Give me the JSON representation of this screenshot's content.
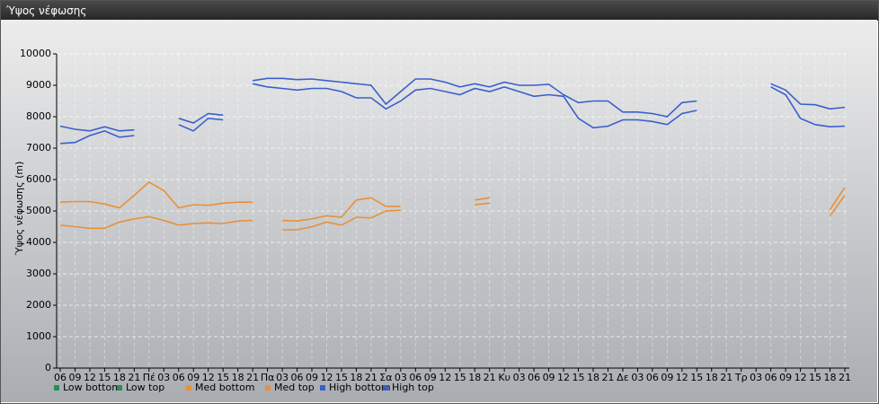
{
  "chart_data": {
    "type": "line",
    "title": "Ύψος νέφωσης",
    "y_label": "Ύψος νέφωσης (m)",
    "categories": [
      "06",
      "09",
      "12",
      "15",
      "18",
      "21",
      "Πέ",
      "03",
      "06",
      "09",
      "12",
      "15",
      "18",
      "21",
      "Πα",
      "03",
      "06",
      "09",
      "12",
      "15",
      "18",
      "21",
      "Σα",
      "03",
      "06",
      "09",
      "12",
      "15",
      "18",
      "21",
      "Κυ",
      "03",
      "06",
      "09",
      "12",
      "15",
      "18",
      "21",
      "Δε",
      "03",
      "06",
      "09",
      "12",
      "15",
      "18",
      "21",
      "Τρ",
      "03",
      "06",
      "09",
      "12",
      "15",
      "18",
      "21"
    ],
    "ylim": [
      0,
      10000
    ],
    "yticks": [
      0,
      1000,
      2000,
      3000,
      4000,
      5000,
      6000,
      7000,
      8000,
      9000,
      10000
    ],
    "grid": true,
    "series": [
      {
        "name": "Low bottom",
        "color": "#2e8b57",
        "values": [
          null,
          null,
          null,
          null,
          null,
          null,
          null,
          null,
          null,
          null,
          null,
          null,
          null,
          null,
          null,
          null,
          null,
          null,
          null,
          null,
          null,
          null,
          null,
          null,
          null,
          null,
          null,
          null,
          null,
          null,
          null,
          null,
          null,
          null,
          null,
          null,
          null,
          null,
          null,
          null,
          null,
          null,
          null,
          null,
          null,
          null,
          null,
          null,
          null,
          null,
          null,
          null,
          null,
          null
        ]
      },
      {
        "name": "Low top",
        "color": "#2e8b57",
        "values": [
          null,
          null,
          null,
          null,
          null,
          null,
          null,
          null,
          null,
          null,
          null,
          null,
          null,
          null,
          null,
          null,
          null,
          null,
          null,
          null,
          null,
          null,
          null,
          null,
          null,
          null,
          null,
          null,
          null,
          null,
          null,
          null,
          null,
          null,
          null,
          null,
          null,
          null,
          null,
          null,
          null,
          null,
          null,
          null,
          null,
          null,
          null,
          null,
          null,
          null,
          null,
          null,
          null,
          null
        ]
      },
      {
        "name": "Med bottom",
        "color": "#e8903a",
        "values": [
          4550,
          4500,
          4450,
          4450,
          4650,
          4750,
          4820,
          4700,
          4550,
          4600,
          4620,
          4600,
          4680,
          4700,
          null,
          4400,
          4400,
          4500,
          4650,
          4550,
          4800,
          4780,
          5000,
          5020,
          null,
          null,
          null,
          null,
          5200,
          5250,
          null,
          null,
          null,
          null,
          null,
          null,
          null,
          null,
          null,
          null,
          null,
          null,
          null,
          null,
          null,
          null,
          null,
          null,
          null,
          null,
          null,
          null,
          4850,
          5500
        ]
      },
      {
        "name": "Med top",
        "color": "#e8903a",
        "values": [
          5280,
          5300,
          5300,
          5220,
          5100,
          5500,
          5920,
          5650,
          5100,
          5200,
          5180,
          5250,
          5280,
          5280,
          null,
          4700,
          4680,
          4750,
          4850,
          4800,
          5350,
          5420,
          5150,
          5150,
          null,
          null,
          null,
          null,
          5350,
          5420,
          null,
          null,
          null,
          null,
          null,
          null,
          null,
          null,
          null,
          null,
          null,
          null,
          null,
          null,
          null,
          null,
          null,
          null,
          null,
          null,
          null,
          null,
          5050,
          5750
        ]
      },
      {
        "name": "High bottom",
        "color": "#3a5fcd",
        "values": [
          7150,
          7180,
          7400,
          7550,
          7350,
          7400,
          null,
          null,
          7750,
          7550,
          7950,
          7900,
          null,
          9050,
          8950,
          8900,
          8850,
          8900,
          8900,
          8800,
          8600,
          8600,
          8250,
          8500,
          8850,
          8900,
          8800,
          8700,
          8900,
          8800,
          8950,
          8800,
          8650,
          8700,
          8650,
          7950,
          7650,
          7700,
          7900,
          7900,
          7850,
          7750,
          8100,
          8200,
          null,
          null,
          null,
          null,
          8950,
          8700,
          7950,
          7750,
          7680,
          7700
        ]
      },
      {
        "name": "High top",
        "color": "#3a5fcd",
        "values": [
          7700,
          7600,
          7550,
          7680,
          7550,
          7580,
          null,
          null,
          7950,
          7800,
          8100,
          8050,
          null,
          9150,
          9220,
          9220,
          9180,
          9200,
          9150,
          9100,
          9050,
          9000,
          8400,
          8800,
          9200,
          9200,
          9100,
          8950,
          9050,
          8950,
          9100,
          9000,
          9000,
          9030,
          8700,
          8450,
          8500,
          8500,
          8150,
          8150,
          8100,
          8000,
          8450,
          8500,
          null,
          null,
          null,
          null,
          9050,
          8850,
          8400,
          8380,
          8250,
          8300
        ]
      }
    ]
  }
}
